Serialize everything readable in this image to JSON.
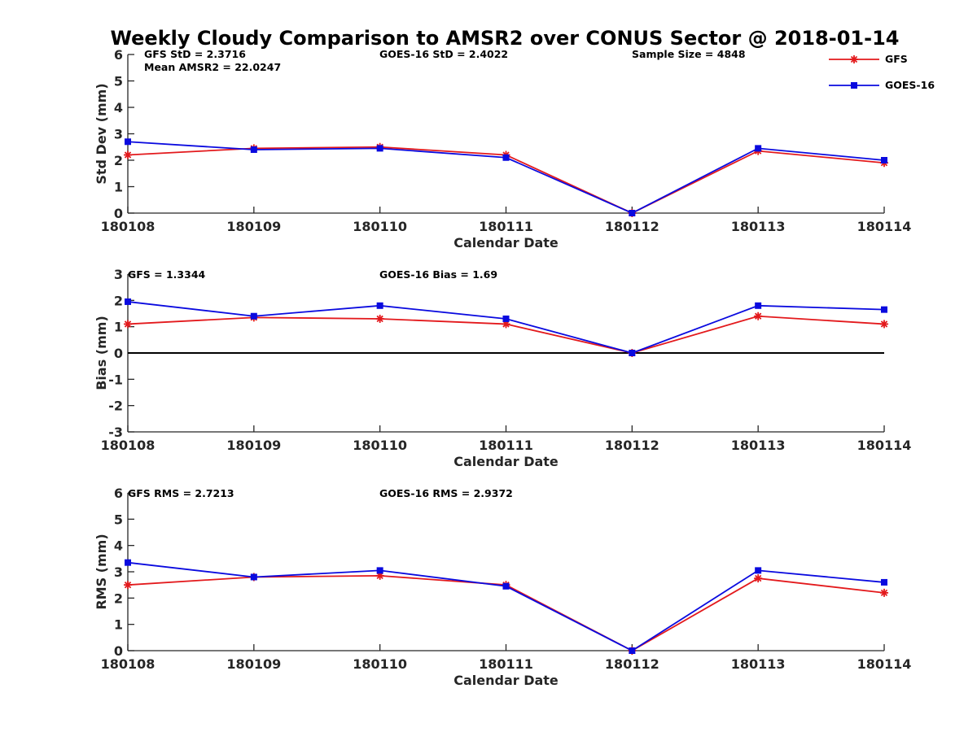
{
  "figure_title": "Weekly Cloudy Comparison to AMSR2 over CONUS Sector @ 2018-01-14",
  "colors": {
    "gfs": "#e3191c",
    "goes": "#0a0adf",
    "axis": "#262626"
  },
  "legend": {
    "placement": "top-right",
    "entries": [
      {
        "name": "GFS",
        "color": "#e3191c",
        "marker": "asterisk"
      },
      {
        "name": "GOES-16",
        "color": "#0a0adf",
        "marker": "square"
      }
    ]
  },
  "chart_data": [
    {
      "type": "line",
      "ylabel": "Std Dev (mm)",
      "xlabel": "Calendar Date",
      "categories": [
        "180108",
        "180109",
        "180110",
        "180111",
        "180112",
        "180113",
        "180114"
      ],
      "ylim": [
        0,
        6
      ],
      "yticks": [
        0,
        1,
        2,
        3,
        4,
        5,
        6
      ],
      "zero_line": false,
      "annotations": [
        "GFS StD = 2.3716",
        "Mean AMSR2 = 22.0247",
        "GOES-16 StD = 2.4022",
        "Sample Size = 4848"
      ],
      "series": [
        {
          "name": "GFS",
          "values": [
            2.2,
            2.45,
            2.5,
            2.2,
            0.0,
            2.35,
            1.9
          ]
        },
        {
          "name": "GOES-16",
          "values": [
            2.7,
            2.4,
            2.45,
            2.1,
            0.0,
            2.45,
            2.0
          ]
        }
      ]
    },
    {
      "type": "line",
      "ylabel": "Bias (mm)",
      "xlabel": "Calendar Date",
      "categories": [
        "180108",
        "180109",
        "180110",
        "180111",
        "180112",
        "180113",
        "180114"
      ],
      "ylim": [
        -3,
        3
      ],
      "yticks": [
        -3,
        -2,
        -1,
        0,
        1,
        2,
        3
      ],
      "zero_line": true,
      "annotations": [
        "GFS = 1.3344",
        "GOES-16 Bias  = 1.69"
      ],
      "series": [
        {
          "name": "GFS",
          "values": [
            1.1,
            1.35,
            1.3,
            1.1,
            0.0,
            1.4,
            1.1
          ]
        },
        {
          "name": "GOES-16",
          "values": [
            1.95,
            1.4,
            1.8,
            1.3,
            0.0,
            1.8,
            1.65
          ]
        }
      ]
    },
    {
      "type": "line",
      "ylabel": "RMS (mm)",
      "xlabel": "Calendar Date",
      "categories": [
        "180108",
        "180109",
        "180110",
        "180111",
        "180112",
        "180113",
        "180114"
      ],
      "ylim": [
        0,
        6
      ],
      "yticks": [
        0,
        1,
        2,
        3,
        4,
        5,
        6
      ],
      "zero_line": false,
      "annotations": [
        "GFS RMS = 2.7213",
        "GOES-16 RMS = 2.9372"
      ],
      "series": [
        {
          "name": "GFS",
          "values": [
            2.5,
            2.8,
            2.85,
            2.5,
            0.0,
            2.75,
            2.2
          ]
        },
        {
          "name": "GOES-16",
          "values": [
            3.35,
            2.8,
            3.05,
            2.45,
            0.0,
            3.05,
            2.6
          ]
        }
      ]
    }
  ]
}
